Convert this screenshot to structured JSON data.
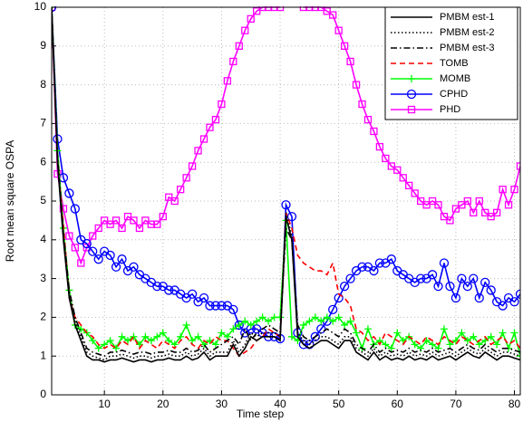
{
  "chart_data": {
    "type": "line",
    "x_label": "Time step",
    "y_label": "Root mean square OSPA",
    "x": [
      1,
      2,
      3,
      4,
      5,
      6,
      7,
      8,
      9,
      10,
      11,
      12,
      13,
      14,
      15,
      16,
      17,
      18,
      19,
      20,
      21,
      22,
      23,
      24,
      25,
      26,
      27,
      28,
      29,
      30,
      31,
      32,
      33,
      34,
      35,
      36,
      37,
      38,
      39,
      40,
      41,
      42,
      43,
      44,
      45,
      46,
      47,
      48,
      49,
      50,
      51,
      52,
      53,
      54,
      55,
      56,
      57,
      58,
      59,
      60,
      61,
      62,
      63,
      64,
      65,
      66,
      67,
      68,
      69,
      70,
      71,
      72,
      73,
      74,
      75,
      76,
      77,
      78,
      79,
      80,
      81
    ],
    "xlim": [
      1,
      81
    ],
    "ylim": [
      0,
      10
    ],
    "xticks": [
      10,
      20,
      30,
      40,
      50,
      60,
      70,
      80
    ],
    "yticks": [
      0,
      1,
      2,
      3,
      4,
      5,
      6,
      7,
      8,
      9,
      10
    ],
    "grid": true,
    "legend": "upper-right",
    "series": [
      {
        "name": "PMBM est-1",
        "color": "#000000",
        "style": "solid",
        "marker": "none",
        "values": [
          10,
          6,
          4,
          2.5,
          1.8,
          1.4,
          1.0,
          0.9,
          0.9,
          0.85,
          0.9,
          0.9,
          0.95,
          0.9,
          0.85,
          0.9,
          0.9,
          0.85,
          0.9,
          0.9,
          0.95,
          0.9,
          0.9,
          1.0,
          0.9,
          0.95,
          1.1,
          0.9,
          1.0,
          1.0,
          1.0,
          1.3,
          1.0,
          1.2,
          1.5,
          1.4,
          1.5,
          1.5,
          1.5,
          1.4,
          4.6,
          4.0,
          1.5,
          1.3,
          1.2,
          1.3,
          1.4,
          1.4,
          1.3,
          1.2,
          1.4,
          1.4,
          1.1,
          1.0,
          0.9,
          1.1,
          0.9,
          1.0,
          0.9,
          0.95,
          0.9,
          1.0,
          0.9,
          0.95,
          0.9,
          1.0,
          0.9,
          0.95,
          1.0,
          0.9,
          1.0,
          1.1,
          1.0,
          0.95,
          1.1,
          1.0,
          0.9,
          1.0,
          1.0,
          0.95,
          0.9
        ]
      },
      {
        "name": "PMBM est-2",
        "color": "#000000",
        "style": "dotted",
        "marker": "none",
        "values": [
          10,
          6.1,
          4.1,
          2.6,
          1.9,
          1.5,
          1.1,
          1.0,
          0.95,
          0.9,
          1.0,
          1.0,
          1.05,
          1.0,
          0.95,
          1.0,
          1.0,
          0.95,
          1.0,
          1.0,
          1.05,
          1.0,
          1.0,
          1.1,
          1.0,
          1.05,
          1.2,
          1.0,
          1.1,
          1.1,
          1.1,
          1.4,
          1.1,
          1.3,
          1.6,
          1.5,
          1.6,
          1.6,
          1.6,
          1.5,
          4.7,
          4.1,
          1.6,
          1.4,
          1.3,
          1.4,
          1.5,
          1.5,
          1.4,
          1.3,
          1.5,
          1.5,
          1.2,
          1.1,
          1.0,
          1.2,
          1.0,
          1.1,
          1.0,
          1.05,
          1.0,
          1.1,
          1.0,
          1.05,
          1.0,
          1.1,
          1.0,
          1.05,
          1.1,
          1.0,
          1.1,
          1.2,
          1.1,
          1.05,
          1.2,
          1.1,
          1.0,
          1.1,
          1.1,
          1.05,
          1.0
        ]
      },
      {
        "name": "PMBM est-3",
        "color": "#000000",
        "style": "dashdot",
        "marker": "none",
        "values": [
          10,
          6.2,
          4.2,
          2.7,
          2.0,
          1.6,
          1.2,
          1.1,
          1.05,
          1.0,
          1.1,
          1.1,
          1.15,
          1.1,
          1.05,
          1.1,
          1.1,
          1.05,
          1.1,
          1.1,
          1.15,
          1.1,
          1.1,
          1.2,
          1.1,
          1.15,
          1.3,
          1.1,
          1.2,
          1.3,
          1.4,
          1.5,
          1.3,
          1.7,
          1.4,
          1.6,
          1.7,
          1.8,
          1.7,
          1.6,
          4.3,
          4.0,
          1.8,
          1.5,
          1.4,
          1.5,
          1.6,
          1.7,
          1.6,
          1.5,
          1.7,
          1.6,
          1.3,
          1.2,
          1.1,
          1.3,
          1.1,
          1.2,
          1.1,
          1.15,
          1.1,
          1.2,
          1.1,
          1.15,
          1.1,
          1.2,
          1.1,
          1.15,
          1.2,
          1.1,
          1.2,
          1.3,
          1.2,
          1.15,
          1.3,
          1.2,
          1.1,
          1.2,
          1.2,
          1.15,
          1.1
        ]
      },
      {
        "name": "TOMB",
        "color": "#ff0000",
        "style": "dashed",
        "marker": "none",
        "values": [
          10,
          6,
          4.4,
          2.5,
          2.0,
          1.8,
          1.6,
          1.5,
          1.3,
          1.2,
          1.3,
          1.2,
          1.4,
          1.3,
          1.5,
          1.2,
          1.4,
          1.3,
          1.2,
          1.4,
          1.3,
          1.2,
          1.4,
          1.5,
          1.3,
          1.2,
          1.4,
          1.3,
          1.5,
          1.4,
          1.4,
          1.2,
          1.0,
          1.1,
          1.2,
          1.4,
          1.5,
          1.7,
          1.6,
          1.5,
          4.7,
          4.3,
          3.6,
          3.4,
          3.3,
          3.2,
          3.2,
          3.1,
          3.4,
          2.6,
          2.5,
          2.3,
          1.7,
          1.6,
          1.4,
          1.5,
          1.3,
          1.6,
          1.5,
          1.4,
          1.3,
          1.5,
          1.4,
          1.3,
          1.5,
          1.4,
          1.3,
          1.5,
          1.4,
          1.3,
          1.5,
          1.4,
          1.3,
          1.4,
          1.5,
          1.3,
          1.4,
          1.5,
          1.3,
          1.4,
          1.2
        ]
      },
      {
        "name": "MOMB",
        "color": "#00ff00",
        "style": "solid",
        "marker": "plus",
        "values": [
          10,
          6.3,
          4.3,
          2.7,
          1.8,
          1.7,
          1.6,
          1.4,
          1.2,
          1.3,
          1.4,
          1.2,
          1.5,
          1.4,
          1.5,
          1.3,
          1.5,
          1.4,
          1.5,
          1.6,
          1.4,
          1.3,
          1.5,
          1.8,
          1.4,
          1.5,
          1.3,
          1.4,
          1.3,
          1.6,
          1.5,
          1.7,
          1.8,
          1.9,
          1.8,
          1.9,
          2.0,
          1.9,
          2.0,
          2.0,
          4.5,
          1.5,
          1.4,
          1.8,
          1.9,
          2.0,
          1.9,
          2.0,
          1.9,
          2.0,
          1.8,
          1.9,
          1.6,
          1.2,
          1.7,
          1.3,
          1.4,
          1.3,
          1.2,
          1.6,
          1.4,
          1.5,
          1.3,
          1.2,
          1.4,
          1.3,
          1.2,
          1.7,
          1.3,
          1.4,
          1.6,
          1.4,
          1.5,
          1.3,
          1.4,
          1.5,
          1.3,
          1.6,
          1.2,
          1.6,
          1.0
        ]
      },
      {
        "name": "CPHD",
        "color": "#0000ff",
        "style": "solid",
        "marker": "circle",
        "values": [
          10,
          6.6,
          5.6,
          5.2,
          4.8,
          4.0,
          3.9,
          3.7,
          3.5,
          3.7,
          3.6,
          3.3,
          3.5,
          3.2,
          3.3,
          3.1,
          3.0,
          2.9,
          2.8,
          2.8,
          2.7,
          2.7,
          2.6,
          2.5,
          2.6,
          2.4,
          2.5,
          2.3,
          2.3,
          2.3,
          2.3,
          2.2,
          1.8,
          1.6,
          1.7,
          1.7,
          1.6,
          1.5,
          1.5,
          1.45,
          4.9,
          4.6,
          1.6,
          1.3,
          1.3,
          1.5,
          1.7,
          1.9,
          2.2,
          2.5,
          2.8,
          3.0,
          3.2,
          3.3,
          3.3,
          3.2,
          3.4,
          3.4,
          3.5,
          3.2,
          3.1,
          3.0,
          2.9,
          3.0,
          3.0,
          3.1,
          2.8,
          3.4,
          2.8,
          2.5,
          3.0,
          2.8,
          3.0,
          2.5,
          2.9,
          2.7,
          2.4,
          2.3,
          2.5,
          2.4,
          2.6
        ]
      },
      {
        "name": "PHD",
        "color": "#ff00ff",
        "style": "solid",
        "marker": "square",
        "values": [
          10,
          5.7,
          4.8,
          4.1,
          3.8,
          3.4,
          3.8,
          4.1,
          4.3,
          4.5,
          4.4,
          4.5,
          4.3,
          4.6,
          4.5,
          4.3,
          4.5,
          4.4,
          4.4,
          4.6,
          5.1,
          5.0,
          5.3,
          5.6,
          5.9,
          6.3,
          6.6,
          6.9,
          7.1,
          7.5,
          8.1,
          8.6,
          9.0,
          9.4,
          9.7,
          9.9,
          10,
          10,
          10,
          10,
          null,
          null,
          null,
          10,
          10,
          10,
          10,
          9.9,
          9.8,
          9.4,
          9.0,
          8.6,
          8.0,
          7.5,
          7.1,
          6.8,
          6.4,
          6.1,
          5.9,
          5.8,
          5.6,
          5.4,
          5.2,
          5.0,
          4.9,
          5.0,
          4.9,
          4.6,
          4.5,
          4.8,
          4.9,
          5.0,
          4.7,
          5.0,
          4.7,
          4.6,
          4.7,
          5.3,
          4.9,
          5.3,
          5.9
        ]
      }
    ]
  }
}
